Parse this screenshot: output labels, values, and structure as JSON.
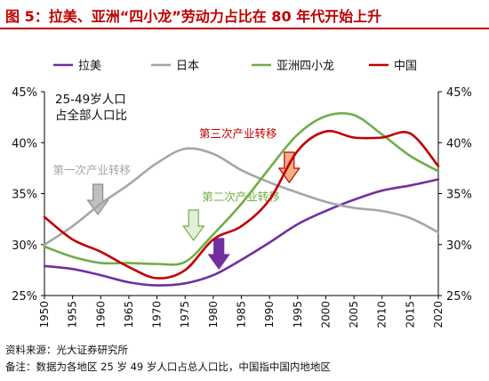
{
  "title": "图 5：拉美、亚洲“四小龙”劳动力占比在 80 年代开始上升",
  "footer": {
    "source": "资料来源：光大证券研究所",
    "note": "备注：数据为各地区 25 岁 49 岁人口占总人口比，中国指中国内地地区"
  },
  "chart_data": {
    "type": "line",
    "subtitle": "25-49岁人口\n占全部人口比",
    "xlim": [
      1950,
      2020
    ],
    "ylim": [
      25,
      45
    ],
    "x_ticks": [
      1950,
      1955,
      1960,
      1965,
      1970,
      1975,
      1980,
      1985,
      1990,
      1995,
      2000,
      2005,
      2010,
      2015,
      2020
    ],
    "y_ticks": [
      "25%",
      "30%",
      "35%",
      "40%",
      "45%"
    ],
    "y_tick_values": [
      25,
      30,
      35,
      40,
      45
    ],
    "legend_position": "top",
    "grid": false,
    "series": [
      {
        "name": "拉美",
        "color": "#7030a0",
        "x": [
          1950,
          1955,
          1960,
          1965,
          1970,
          1975,
          1980,
          1985,
          1990,
          1995,
          2000,
          2005,
          2010,
          2015,
          2020
        ],
        "y": [
          27.9,
          27.6,
          27.0,
          26.3,
          26.0,
          26.2,
          27.0,
          28.5,
          30.2,
          32.0,
          33.3,
          34.4,
          35.3,
          35.8,
          36.4
        ]
      },
      {
        "name": "日本",
        "color": "#a6a6a6",
        "x": [
          1950,
          1955,
          1960,
          1965,
          1970,
          1975,
          1980,
          1985,
          1990,
          1995,
          2000,
          2005,
          2010,
          2015,
          2020
        ],
        "y": [
          30.0,
          31.8,
          34.0,
          35.9,
          38.0,
          39.4,
          38.9,
          37.3,
          36.1,
          35.1,
          34.2,
          33.6,
          33.3,
          32.6,
          31.2
        ]
      },
      {
        "name": "亚洲四小龙",
        "color": "#70ad47",
        "x": [
          1950,
          1955,
          1960,
          1965,
          1970,
          1975,
          1980,
          1985,
          1990,
          1995,
          2000,
          2005,
          2010,
          2015,
          2020
        ],
        "y": [
          29.8,
          28.8,
          28.2,
          28.2,
          28.1,
          28.3,
          31.0,
          34.0,
          37.5,
          40.8,
          42.6,
          42.7,
          40.8,
          38.7,
          37.2
        ]
      },
      {
        "name": "中国",
        "color": "#c00000",
        "x": [
          1950,
          1955,
          1960,
          1965,
          1970,
          1975,
          1980,
          1985,
          1990,
          1995,
          2000,
          2005,
          2010,
          2015,
          2020
        ],
        "y": [
          32.7,
          30.5,
          29.3,
          27.8,
          26.7,
          27.5,
          30.5,
          31.8,
          34.4,
          39.2,
          41.1,
          40.5,
          40.5,
          40.9,
          37.7
        ]
      }
    ],
    "annotations": [
      {
        "text": "第一次产业转移",
        "color": "#a6a6a6",
        "arrow_fill": "#bfbfbf",
        "x": 1967,
        "y": 36.9
      },
      {
        "text": "第二次产业转移",
        "color": "#70ad47",
        "arrow_fill": "#e2f0d9",
        "x": 1986,
        "y": 34.3
      },
      {
        "text": "第三次产业转移",
        "color": "#c00000",
        "arrow_fill": "#f4b183",
        "x": 1985.5,
        "y": 40.5
      }
    ]
  }
}
